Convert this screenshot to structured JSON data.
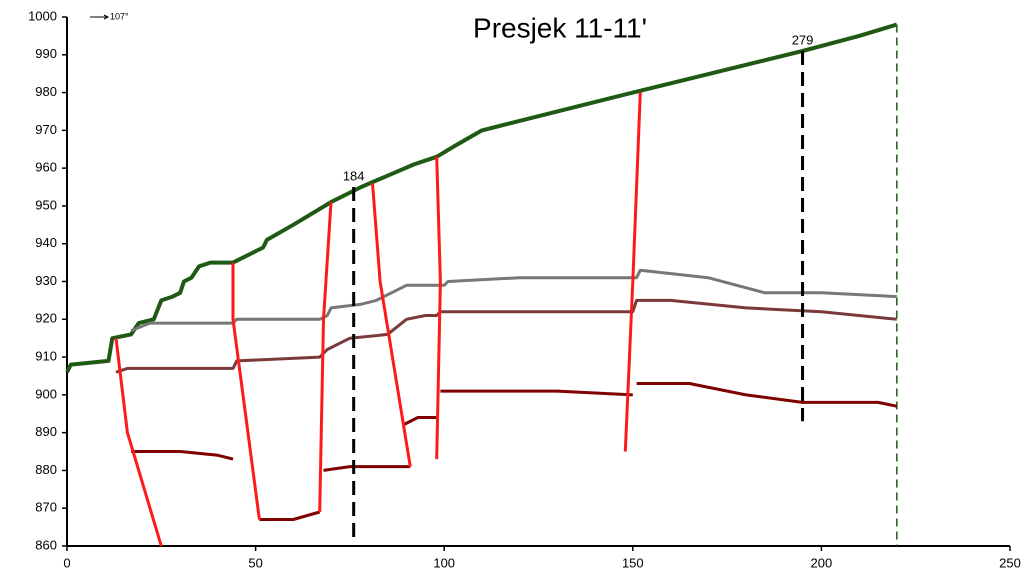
{
  "chart_data": {
    "type": "line",
    "title": "Presjek 11-11'",
    "north_label": "107°",
    "xlim": [
      0,
      250
    ],
    "xticks": [
      0,
      50,
      100,
      150,
      200,
      250
    ],
    "ylim": [
      860,
      1000
    ],
    "yticks": [
      860,
      870,
      880,
      890,
      900,
      910,
      920,
      930,
      940,
      950,
      960,
      970,
      980,
      990,
      1000
    ],
    "series": [
      {
        "color": "#1f5a14",
        "width": 4,
        "x": [
          0,
          1,
          11,
          12,
          17,
          19,
          23,
          25,
          28,
          30,
          31,
          33,
          35,
          38,
          44,
          52,
          53,
          60,
          70,
          78,
          85,
          92,
          98,
          103,
          110,
          150,
          195,
          210,
          220
        ],
        "values": [
          906,
          908,
          909,
          915,
          916,
          919,
          920,
          925,
          926,
          927,
          930,
          931,
          934,
          935,
          935,
          939,
          941,
          945,
          951,
          955,
          958,
          961,
          963,
          966,
          970,
          980,
          991,
          995,
          998
        ]
      },
      {
        "color": "#777777",
        "width": 3,
        "x": [
          17,
          22,
          44,
          45,
          67,
          69,
          70,
          78,
          82,
          90,
          100,
          101,
          120,
          140,
          151,
          152,
          170,
          185,
          200,
          220
        ],
        "values": [
          917,
          919,
          919,
          920,
          920,
          921,
          923,
          924,
          925,
          929,
          929,
          930,
          931,
          931,
          931,
          933,
          931,
          927,
          927,
          926
        ]
      },
      {
        "color": "#7a3a3a",
        "width": 3,
        "x": [
          13,
          16,
          44,
          45,
          67,
          69,
          75,
          85,
          90,
          95,
          98,
          99,
          150,
          151,
          160,
          180,
          200,
          220
        ],
        "values": [
          906,
          907,
          907,
          909,
          910,
          912,
          915,
          916,
          920,
          921,
          921,
          922,
          922,
          925,
          925,
          923,
          922,
          920
        ]
      },
      {
        "color": "#800000",
        "width": 3,
        "x": [
          17,
          30,
          40,
          44,
          50,
          51,
          60,
          67,
          70,
          68,
          75,
          85,
          91,
          95,
          89,
          93,
          98,
          100,
          99,
          110,
          130,
          150,
          151,
          151,
          165,
          180,
          195,
          205,
          215,
          220
        ],
        "values": [
          885,
          885,
          884,
          883,
          null,
          867,
          867,
          869,
          null,
          880,
          881,
          881,
          881,
          null,
          892,
          894,
          894,
          null,
          901,
          901,
          901,
          900,
          null,
          903,
          903,
          900,
          898,
          898,
          898,
          897
        ]
      },
      {
        "color": "#ff1a1a",
        "width": 3,
        "x": [
          13,
          16,
          25,
          30,
          44,
          44,
          51,
          55,
          70,
          68,
          67,
          75,
          81,
          83,
          91,
          95,
          98,
          99,
          98,
          120,
          152,
          150,
          148
        ],
        "values": [
          915,
          890,
          860,
          null,
          935,
          920,
          867,
          null,
          951,
          920,
          869,
          null,
          956,
          930,
          881,
          null,
          963,
          930,
          883,
          null,
          980,
          930,
          885
        ]
      }
    ],
    "boreholes": [
      {
        "label": "184",
        "x": 76,
        "top": 955,
        "bottom": 862
      },
      {
        "label": "279",
        "x": 195,
        "top": 991,
        "bottom": 893
      }
    ],
    "section_end": {
      "x": 220,
      "top": 998,
      "bottom": 860,
      "color": "#1f5a14"
    }
  }
}
